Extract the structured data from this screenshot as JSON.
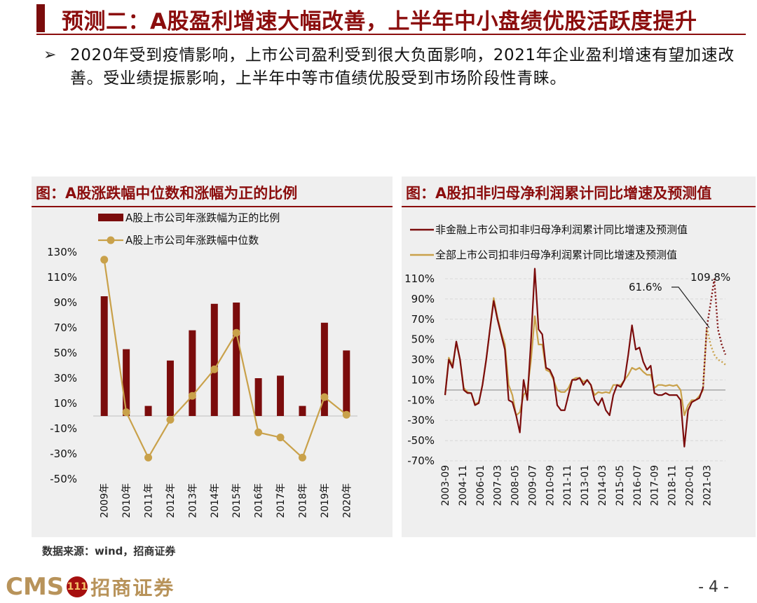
{
  "header": {
    "title": "预测二：A股盈利增速大幅改善，上半年中小盘绩优股活跃度提升"
  },
  "summary": {
    "bullet": "➢",
    "text": "2020年受到疫情影响，上市公司盈利受到很大负面影响，2021年企业盈利增速有望加速改善。受业绩提振影响，上半年中等市值绩优股受到市场阶段性青睐。"
  },
  "colors": {
    "brand": "#8b0d0d",
    "bar": "#7b0c0c",
    "gold": "#c9a14a",
    "panel": "#efefef"
  },
  "chart_data": [
    {
      "type": "bar",
      "title": "图：A股涨跌幅中位数和涨幅为正的比例",
      "categories": [
        "2009年",
        "2010年",
        "2011年",
        "2012年",
        "2013年",
        "2014年",
        "2015年",
        "2016年",
        "2017年",
        "2018年",
        "2019年",
        "2020年"
      ],
      "series": [
        {
          "name": "A股上市公司年涨跌幅为正的比例",
          "type": "bar",
          "color": "#7b0c0c",
          "values": [
            95,
            53,
            8,
            44,
            68,
            89,
            90,
            30,
            32,
            8,
            74,
            52
          ]
        },
        {
          "name": "A股上市公司年涨跌幅中位数",
          "type": "line",
          "color": "#c9a14a",
          "values": [
            124,
            3,
            -33,
            -3,
            16,
            37,
            66,
            -13,
            -17,
            -33,
            15,
            1
          ]
        }
      ],
      "ylim": [
        -50,
        130
      ],
      "yticks": [
        "130%",
        "110%",
        "90%",
        "70%",
        "50%",
        "30%",
        "10%",
        "-10%",
        "-30%",
        "-50%"
      ],
      "legend_position": "top",
      "grid": false
    },
    {
      "type": "line",
      "title": "图：A股扣非归母净利润累计同比增速及预测值",
      "x_tick_labels": [
        "2003-09",
        "2004-11",
        "2006-01",
        "2007-03",
        "2008-05",
        "2009-07",
        "2010-09",
        "2011-11",
        "2013-01",
        "2014-03",
        "2015-05",
        "2016-07",
        "2017-09",
        "2018-11",
        "2020-01",
        "2021-03"
      ],
      "ylim": [
        -70,
        110
      ],
      "yticks": [
        "110%",
        "90%",
        "70%",
        "50%",
        "30%",
        "10%",
        "-10%",
        "-30%",
        "-50%",
        "-70%"
      ],
      "legend_position": "top",
      "grid": true,
      "annotations": [
        {
          "text": "109.8%",
          "series": 0,
          "at_month": 216,
          "value": 109.8
        },
        {
          "text": "61.6%",
          "series": 1,
          "at_month": 212,
          "value": 61.6
        }
      ],
      "forecast_start_month": 210,
      "series": [
        {
          "name": "非金融上市公司扣非归母净利润累计同比增速及预测值",
          "color": "#7b0c0c",
          "points": [
            [
              0,
              -5
            ],
            [
              3,
              30
            ],
            [
              6,
              22
            ],
            [
              9,
              48
            ],
            [
              12,
              30
            ],
            [
              15,
              0
            ],
            [
              18,
              -3
            ],
            [
              21,
              -3
            ],
            [
              24,
              -15
            ],
            [
              27,
              -13
            ],
            [
              30,
              5
            ],
            [
              33,
              30
            ],
            [
              36,
              60
            ],
            [
              39,
              88
            ],
            [
              42,
              70
            ],
            [
              45,
              55
            ],
            [
              48,
              40
            ],
            [
              51,
              -10
            ],
            [
              54,
              -12
            ],
            [
              57,
              -25
            ],
            [
              60,
              -42
            ],
            [
              63,
              10
            ],
            [
              66,
              -10
            ],
            [
              69,
              50
            ],
            [
              72,
              120
            ],
            [
              75,
              60
            ],
            [
              78,
              55
            ],
            [
              81,
              22
            ],
            [
              84,
              20
            ],
            [
              87,
              12
            ],
            [
              90,
              -15
            ],
            [
              93,
              -20
            ],
            [
              96,
              -20
            ],
            [
              99,
              -5
            ],
            [
              102,
              10
            ],
            [
              105,
              10
            ],
            [
              108,
              12
            ],
            [
              111,
              5
            ],
            [
              114,
              10
            ],
            [
              117,
              5
            ],
            [
              120,
              -10
            ],
            [
              123,
              -15
            ],
            [
              126,
              -8
            ],
            [
              129,
              -20
            ],
            [
              132,
              -25
            ],
            [
              135,
              -5
            ],
            [
              138,
              5
            ],
            [
              141,
              3
            ],
            [
              144,
              10
            ],
            [
              147,
              35
            ],
            [
              150,
              64
            ],
            [
              153,
              40
            ],
            [
              156,
              42
            ],
            [
              159,
              28
            ],
            [
              162,
              20
            ],
            [
              165,
              24
            ],
            [
              168,
              -3
            ],
            [
              171,
              -5
            ],
            [
              174,
              -5
            ],
            [
              177,
              -3
            ],
            [
              180,
              -5
            ],
            [
              183,
              -5
            ],
            [
              186,
              -5
            ],
            [
              189,
              -10
            ],
            [
              192,
              -56
            ],
            [
              195,
              -20
            ],
            [
              198,
              -12
            ],
            [
              201,
              -10
            ],
            [
              204,
              -8
            ],
            [
              207,
              2
            ],
            [
              210,
              61.6
            ],
            [
              213,
              85
            ],
            [
              216,
              109.8
            ],
            [
              219,
              60
            ],
            [
              222,
              45
            ],
            [
              225,
              35
            ]
          ]
        },
        {
          "name": "全部上市公司扣非归母净利润累计同比增速及预测值",
          "color": "#c9a14a",
          "points": [
            [
              0,
              -5
            ],
            [
              3,
              32
            ],
            [
              6,
              24
            ],
            [
              9,
              47
            ],
            [
              12,
              30
            ],
            [
              15,
              2
            ],
            [
              18,
              -2
            ],
            [
              21,
              -3
            ],
            [
              24,
              -14
            ],
            [
              27,
              -12
            ],
            [
              30,
              5
            ],
            [
              33,
              30
            ],
            [
              36,
              60
            ],
            [
              39,
              91
            ],
            [
              42,
              72
            ],
            [
              45,
              57
            ],
            [
              48,
              45
            ],
            [
              51,
              5
            ],
            [
              54,
              -5
            ],
            [
              57,
              -25
            ],
            [
              60,
              -22
            ],
            [
              63,
              -5
            ],
            [
              66,
              0
            ],
            [
              69,
              30
            ],
            [
              72,
              73
            ],
            [
              75,
              45
            ],
            [
              78,
              45
            ],
            [
              81,
              20
            ],
            [
              84,
              18
            ],
            [
              87,
              10
            ],
            [
              90,
              0
            ],
            [
              93,
              -2
            ],
            [
              96,
              -2
            ],
            [
              99,
              2
            ],
            [
              102,
              10
            ],
            [
              105,
              12
            ],
            [
              108,
              12
            ],
            [
              111,
              8
            ],
            [
              114,
              10
            ],
            [
              117,
              5
            ],
            [
              120,
              -5
            ],
            [
              123,
              -2
            ],
            [
              126,
              -3
            ],
            [
              129,
              -2
            ],
            [
              132,
              -3
            ],
            [
              135,
              5
            ],
            [
              138,
              5
            ],
            [
              141,
              5
            ],
            [
              144,
              10
            ],
            [
              147,
              15
            ],
            [
              150,
              22
            ],
            [
              153,
              20
            ],
            [
              156,
              22
            ],
            [
              159,
              18
            ],
            [
              162,
              15
            ],
            [
              165,
              15
            ],
            [
              168,
              2
            ],
            [
              171,
              5
            ],
            [
              174,
              5
            ],
            [
              177,
              4
            ],
            [
              180,
              5
            ],
            [
              183,
              4
            ],
            [
              186,
              5
            ],
            [
              189,
              0
            ],
            [
              192,
              -25
            ],
            [
              195,
              -15
            ],
            [
              198,
              -10
            ],
            [
              201,
              -10
            ],
            [
              204,
              -6
            ],
            [
              207,
              0
            ],
            [
              210,
              62
            ],
            [
              213,
              45
            ],
            [
              216,
              35
            ],
            [
              219,
              30
            ],
            [
              222,
              28
            ],
            [
              225,
              25
            ]
          ]
        }
      ]
    }
  ],
  "footer": {
    "source": "数据来源：wind，招商证券",
    "logo_text": "CMS",
    "logo_emblem": "111",
    "logo_cn": "招商证券",
    "page_number": "- 4 -"
  }
}
